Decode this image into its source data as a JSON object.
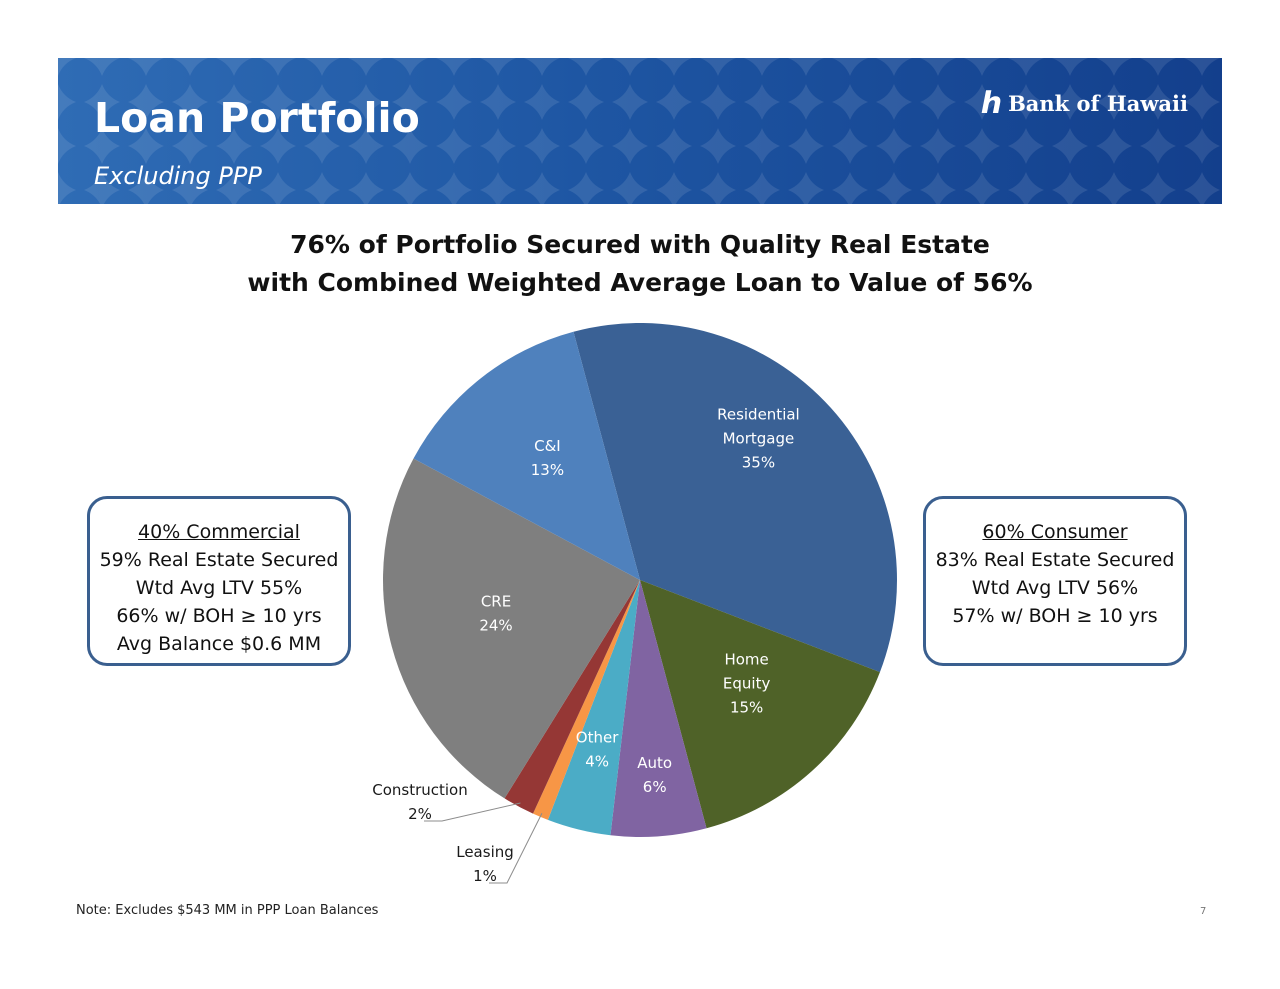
{
  "header": {
    "title": "Loan Portfolio",
    "subtitle": "Excluding PPP",
    "logo_mark": "ℎ",
    "logo_text": "Bank of Hawaii"
  },
  "headline": {
    "line1": "76% of Portfolio Secured with Quality Real Estate",
    "line2": "with Combined Weighted Average Loan to Value of 56%"
  },
  "commercial_box": {
    "heading": "40% Commercial",
    "lines": [
      "59% Real Estate Secured",
      "Wtd Avg LTV 55%",
      "66% w/ BOH ≥ 10 yrs",
      "Avg Balance $0.6 MM"
    ]
  },
  "consumer_box": {
    "heading": "60% Consumer",
    "lines": [
      "83% Real Estate Secured",
      "Wtd Avg LTV 56%",
      "57% w/ BOH ≥ 10 yrs"
    ]
  },
  "chart_data": {
    "type": "pie",
    "start_angle_deg": -15,
    "direction": "clockwise",
    "slices": [
      {
        "name_lines": [
          "Residential",
          "Mortgage"
        ],
        "value_label": "35%",
        "value": 35,
        "color": "#3a6195",
        "label_color": "#ffffff"
      },
      {
        "name_lines": [
          "Home",
          "Equity"
        ],
        "value_label": "15%",
        "value": 15,
        "color": "#4f6228",
        "label_color": "#ffffff"
      },
      {
        "name_lines": [
          "Auto"
        ],
        "value_label": "6%",
        "value": 6,
        "color": "#8064a2",
        "label_color": "#ffffff"
      },
      {
        "name_lines": [
          "Other"
        ],
        "value_label": "4%",
        "value": 4,
        "color": "#4bacc6",
        "label_color": "#ffffff"
      },
      {
        "name_lines": [
          "Leasing"
        ],
        "value_label": "1%",
        "value": 1,
        "color": "#f79646",
        "label_color": "#1a1a1a"
      },
      {
        "name_lines": [
          "Construction"
        ],
        "value_label": "2%",
        "value": 2,
        "color": "#953735",
        "label_color": "#1a1a1a"
      },
      {
        "name_lines": [
          "CRE"
        ],
        "value_label": "24%",
        "value": 24,
        "color": "#7f7f7f",
        "label_color": "#ffffff"
      },
      {
        "name_lines": [
          "C&I"
        ],
        "value_label": "13%",
        "value": 13,
        "color": "#4f81bd",
        "label_color": "#ffffff"
      }
    ]
  },
  "footer": {
    "note": "Note: Excludes $543 MM in PPP Loan Balances",
    "page_number": "7"
  }
}
